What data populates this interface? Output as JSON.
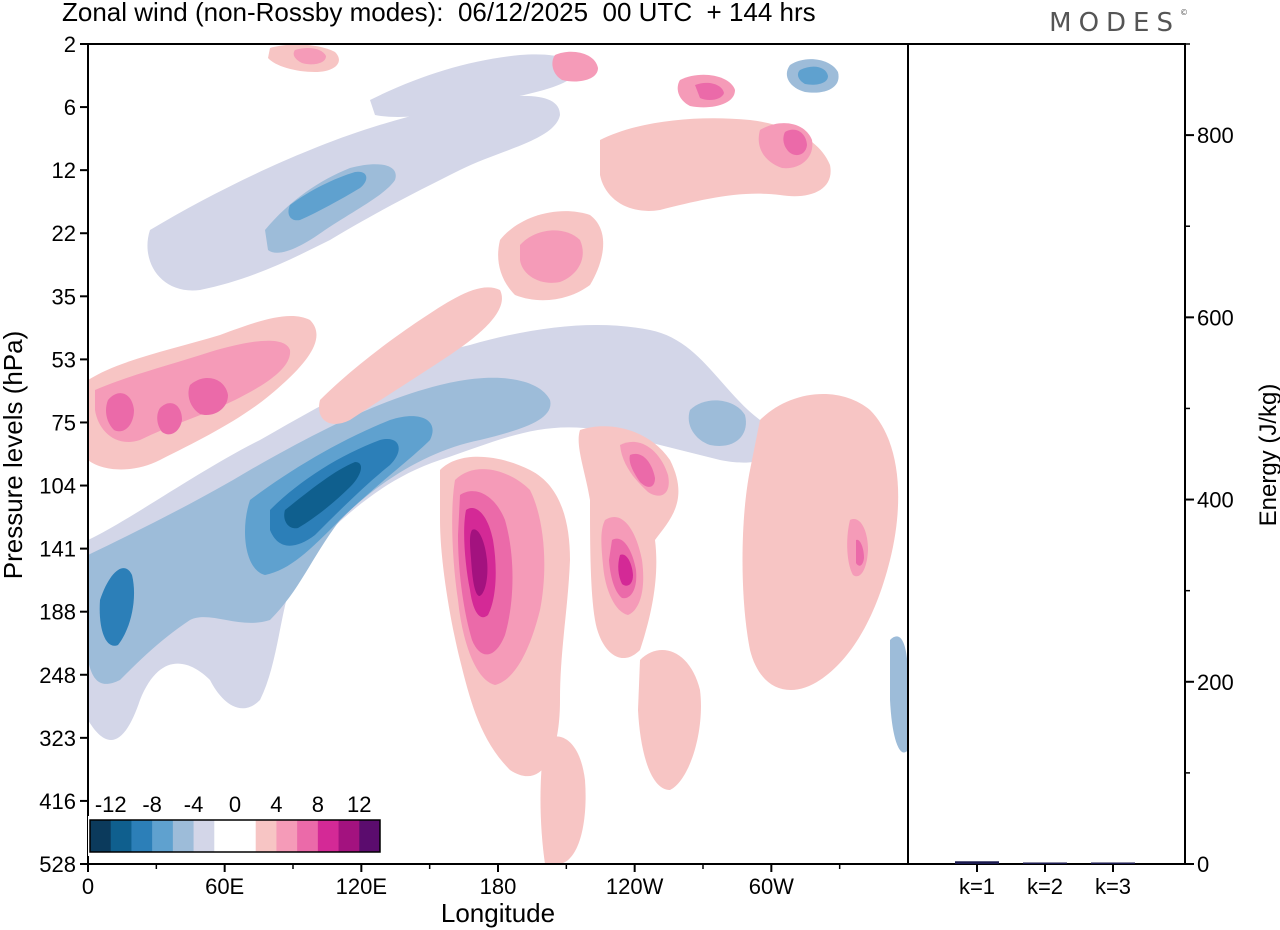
{
  "title": "Zonal wind (non-Rossby modes):  06/12/2025  00 UTC  + 144 hrs",
  "logo": "MODES",
  "chart_data": [
    {
      "type": "heatmap",
      "title": "Zonal wind (non-Rossby modes):  06/12/2025  00 UTC  + 144 hrs",
      "xlabel": "Longitude",
      "ylabel": "Pressure levels (hPa)",
      "x_ticks": [
        "0",
        "60E",
        "120E",
        "180",
        "120W",
        "60W"
      ],
      "y_ticks": [
        "2",
        "6",
        "12",
        "22",
        "35",
        "53",
        "75",
        "104",
        "141",
        "188",
        "248",
        "323",
        "416",
        "528"
      ],
      "colorbar": {
        "labels": [
          "-12",
          "-8",
          "-4",
          "0",
          "4",
          "8",
          "12"
        ],
        "colors": [
          "#0b3a5c",
          "#0f5f8e",
          "#2c7fb8",
          "#5fa1cf",
          "#9dbcd9",
          "#d3d6e8",
          "#ffffff",
          "#ffffff",
          "#f7c5c4",
          "#f59bb8",
          "#eb6aa9",
          "#d42996",
          "#a3127f",
          "#5b0c6e"
        ]
      },
      "features": [
        {
          "name": "neg-jet-tilted",
          "sign": "negative",
          "lon_range": [
            "40E",
            "160E"
          ],
          "levels": [
            "75",
            "188"
          ],
          "peak": -14
        },
        {
          "name": "neg-low-west",
          "sign": "negative",
          "lon_range": [
            "0",
            "30E"
          ],
          "levels": [
            "141",
            "248"
          ],
          "peak": -10
        },
        {
          "name": "pos-dateline",
          "sign": "positive",
          "lon_range": [
            "170E",
            "170W"
          ],
          "levels": [
            "104",
            "248"
          ],
          "peak": 14
        },
        {
          "name": "pos-120W",
          "sign": "positive",
          "lon_range": [
            "130W",
            "110W"
          ],
          "levels": [
            "104",
            "188"
          ],
          "peak": 10
        },
        {
          "name": "pos-upper-west",
          "sign": "positive",
          "lon_range": [
            "0",
            "80E"
          ],
          "levels": [
            "53",
            "104"
          ],
          "peak": 9
        },
        {
          "name": "neg-stratosphere",
          "sign": "negative",
          "lon_range": [
            "70E",
            "120E"
          ],
          "levels": [
            "12",
            "22"
          ],
          "peak": -9
        }
      ]
    },
    {
      "type": "bar",
      "categories": [
        "k=1",
        "k=2",
        "k=3"
      ],
      "values": [
        3,
        1.5,
        1
      ],
      "ylabel": "Energy (J/kg)",
      "ylim": [
        0,
        900
      ],
      "y_ticks": [
        0,
        200,
        400,
        600,
        800
      ],
      "bar_color": "#1a1a4e"
    }
  ]
}
